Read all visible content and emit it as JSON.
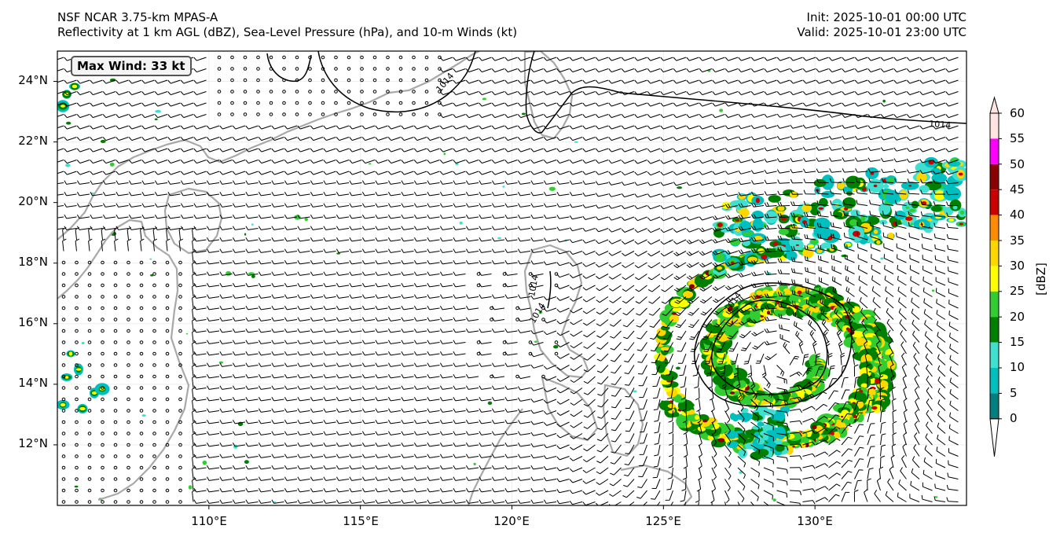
{
  "header": {
    "title_left_line1": "NSF NCAR 3.75-km MPAS-A",
    "title_left_line2": "Reflectivity at 1 km AGL (dBZ), Sea-Level Pressure (hPa), and 10-m Winds (kt)",
    "title_right_line1": "Init: 2025-10-01 00:00 UTC",
    "title_right_line2": "Valid: 2025-10-01 23:00 UTC"
  },
  "map": {
    "lat_range": [
      10,
      25
    ],
    "lon_range": [
      105,
      135
    ],
    "lat_ticks": [
      "24°N",
      "22°N",
      "20°N",
      "18°N",
      "16°N",
      "14°N",
      "12°N"
    ],
    "lon_ticks": [
      "110°E",
      "115°E",
      "120°E",
      "125°E",
      "130°E"
    ],
    "max_wind_label": "Max Wind: 33 kt",
    "contour_labels": [
      "1014",
      "1014",
      "1014",
      "1014",
      "1014"
    ],
    "storm_center": {
      "lon": 128.9,
      "lat": 14.8
    },
    "coastline_color": "#a8a8a8",
    "contour_color": "#000000"
  },
  "colorbar": {
    "unit_label": "[dBZ]",
    "tick_labels": [
      "0",
      "5",
      "10",
      "15",
      "20",
      "25",
      "30",
      "35",
      "40",
      "45",
      "50",
      "55",
      "60"
    ],
    "colors": [
      "#ffffff",
      "#008080",
      "#00bfbf",
      "#40e0d0",
      "#008000",
      "#32cd32",
      "#ffff00",
      "#ffd700",
      "#ff8c00",
      "#cc0000",
      "#8b0000",
      "#ff00ff",
      "#ffe4e1"
    ]
  }
}
